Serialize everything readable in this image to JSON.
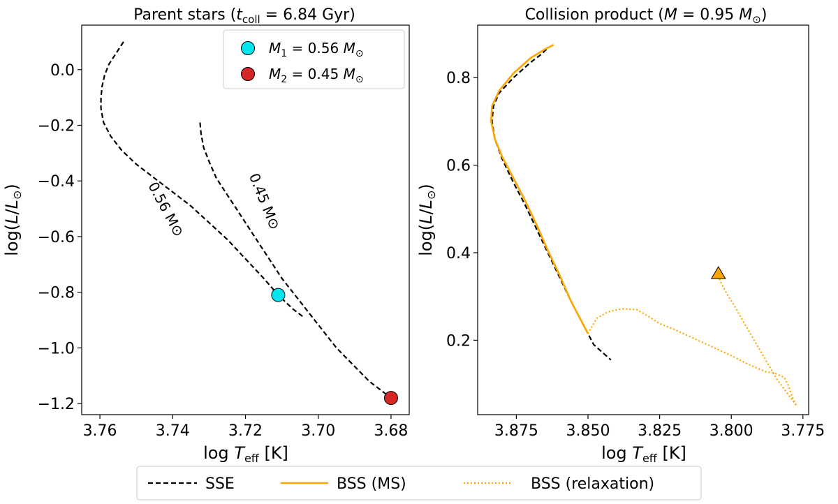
{
  "chart_data": [
    {
      "type": "line",
      "title": "Parent stars (t_coll = 6.84 Gyr)",
      "xlabel": "log T_eff [K]",
      "ylabel": "log(L/L⊙)",
      "xlim": [
        3.765,
        3.675
      ],
      "ylim": [
        -1.24,
        0.16
      ],
      "xticks": [
        3.76,
        3.74,
        3.72,
        3.7,
        3.68
      ],
      "xtick_labels": [
        "3.76",
        "3.74",
        "3.72",
        "3.70",
        "3.68"
      ],
      "yticks": [
        0.0,
        -0.2,
        -0.4,
        -0.6,
        -0.8,
        -1.0,
        -1.2
      ],
      "ytick_labels": [
        "0.0",
        "−0.2",
        "−0.4",
        "−0.6",
        "−0.8",
        "−1.0",
        "−1.2"
      ],
      "series": [
        {
          "name": "0.56 M⊙",
          "style": "SSE",
          "x": [
            3.7535,
            3.7555,
            3.7575,
            3.7587,
            3.7594,
            3.7597,
            3.7597,
            3.759,
            3.757,
            3.754,
            3.75,
            3.745,
            3.74,
            3.735,
            3.73,
            3.725,
            3.72,
            3.715,
            3.711,
            3.707,
            3.704
          ],
          "y": [
            0.1,
            0.06,
            0.02,
            -0.02,
            -0.06,
            -0.1,
            -0.14,
            -0.19,
            -0.24,
            -0.29,
            -0.34,
            -0.39,
            -0.44,
            -0.49,
            -0.55,
            -0.61,
            -0.68,
            -0.75,
            -0.81,
            -0.86,
            -0.89
          ]
        },
        {
          "name": "0.45 M⊙",
          "style": "SSE",
          "x": [
            3.7325,
            3.7322,
            3.7315,
            3.73,
            3.728,
            3.725,
            3.722,
            3.719,
            3.716,
            3.713,
            3.71,
            3.707,
            3.704,
            3.701,
            3.698,
            3.695,
            3.692,
            3.689,
            3.686,
            3.683,
            3.68,
            3.679
          ],
          "y": [
            -0.19,
            -0.23,
            -0.28,
            -0.33,
            -0.39,
            -0.45,
            -0.51,
            -0.57,
            -0.63,
            -0.69,
            -0.75,
            -0.8,
            -0.85,
            -0.9,
            -0.95,
            -1.0,
            -1.04,
            -1.08,
            -1.12,
            -1.15,
            -1.18,
            -1.2
          ]
        }
      ],
      "curve_labels": [
        {
          "text": "0.56 M⊙",
          "x": 3.743,
          "y": -0.51
        },
        {
          "text": "0.45 M⊙",
          "x": 3.716,
          "y": -0.48
        }
      ],
      "points": [
        {
          "label": "M1 = 0.56 M⊙",
          "x": 3.711,
          "y": -0.81,
          "color": "#00e5ee"
        },
        {
          "label": "M2 = 0.45 M⊙",
          "x": 3.68,
          "y": -1.18,
          "color": "#d62728"
        }
      ],
      "legend_position": "top-right"
    },
    {
      "type": "line",
      "title": "Collision product (M = 0.95 M⊙)",
      "xlabel": "log T_eff [K]",
      "ylabel": "log(L/L⊙)",
      "xlim": [
        3.8885,
        3.773
      ],
      "ylim": [
        0.03,
        0.92
      ],
      "xticks": [
        3.875,
        3.85,
        3.825,
        3.8,
        3.775
      ],
      "xtick_labels": [
        "3.875",
        "3.850",
        "3.825",
        "3.800",
        "3.775"
      ],
      "yticks": [
        0.2,
        0.4,
        0.6,
        0.8
      ],
      "ytick_labels": [
        "0.2",
        "0.4",
        "0.6",
        "0.8"
      ],
      "series": [
        {
          "name": "SSE",
          "style": "SSE",
          "x": [
            3.8645,
            3.866,
            3.87,
            3.876,
            3.881,
            3.883,
            3.8835,
            3.8825,
            3.88,
            3.876,
            3.872,
            3.868,
            3.864,
            3.86,
            3.856,
            3.852,
            3.848,
            3.842
          ],
          "y": [
            0.865,
            0.855,
            0.835,
            0.8,
            0.765,
            0.735,
            0.7,
            0.66,
            0.615,
            0.56,
            0.51,
            0.455,
            0.4,
            0.345,
            0.29,
            0.24,
            0.19,
            0.155
          ]
        },
        {
          "name": "BSS (MS)",
          "style": "BSS_MS",
          "x": [
            3.862,
            3.865,
            3.87,
            3.876,
            3.881,
            3.8835,
            3.8838,
            3.8825,
            3.88,
            3.876,
            3.872,
            3.868,
            3.864,
            3.86,
            3.856,
            3.85
          ],
          "y": [
            0.875,
            0.865,
            0.845,
            0.81,
            0.77,
            0.735,
            0.7,
            0.66,
            0.62,
            0.57,
            0.52,
            0.465,
            0.405,
            0.35,
            0.29,
            0.215
          ]
        },
        {
          "name": "BSS (relaxation)",
          "style": "BSS_relax",
          "x": [
            3.85,
            3.847,
            3.843,
            3.838,
            3.833,
            3.829,
            3.825,
            3.82,
            3.815,
            3.81,
            3.805,
            3.8,
            3.795,
            3.7905,
            3.788,
            3.785,
            3.7815,
            3.78,
            3.779,
            3.778,
            3.7772,
            3.78,
            3.784,
            3.788,
            3.792,
            3.796,
            3.799,
            3.801,
            3.8025,
            3.8035,
            3.804,
            3.8045,
            3.805
          ],
          "y": [
            0.215,
            0.25,
            0.265,
            0.272,
            0.27,
            0.255,
            0.238,
            0.225,
            0.21,
            0.195,
            0.18,
            0.165,
            0.148,
            0.135,
            0.128,
            0.125,
            0.115,
            0.095,
            0.075,
            0.06,
            0.05,
            0.075,
            0.11,
            0.155,
            0.2,
            0.245,
            0.28,
            0.3,
            0.318,
            0.33,
            0.338,
            0.343,
            0.348
          ]
        }
      ],
      "points": [
        {
          "label": "collision product",
          "marker": "triangle",
          "x": 3.8045,
          "y": 0.352,
          "color": "#ffa500"
        }
      ]
    }
  ],
  "legend": {
    "position": "bottom-center",
    "items": [
      {
        "label": "SSE",
        "style": "SSE"
      },
      {
        "label": "BSS (MS)",
        "style": "BSS_MS"
      },
      {
        "label": "BSS (relaxation)",
        "style": "BSS_relax"
      }
    ]
  },
  "colors": {
    "sse": "#000000",
    "bss": "#ffa500",
    "m1": "#00e5ee",
    "m2": "#d62728"
  }
}
